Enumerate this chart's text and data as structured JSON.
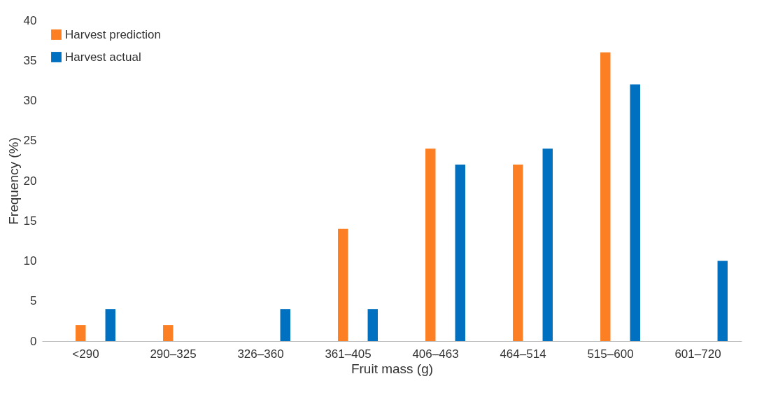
{
  "chart_data": {
    "type": "bar",
    "xlabel": "Fruit mass (g)",
    "ylabel": "Frequency (%)",
    "categories": [
      "<290",
      "290–325",
      "326–360",
      "361–405",
      "406–463",
      "464–514",
      "515–600",
      "601–720"
    ],
    "series": [
      {
        "name": "Harvest prediction",
        "color": "#fd7f23",
        "values": [
          2,
          2,
          0,
          14,
          24,
          22,
          36,
          0
        ]
      },
      {
        "name": "Harvest actual",
        "color": "#0070c0",
        "values": [
          4,
          0,
          4,
          4,
          22,
          24,
          32,
          10
        ]
      }
    ],
    "ylim": [
      0,
      40
    ],
    "yticks": [
      0,
      5,
      10,
      15,
      20,
      25,
      30,
      35,
      40
    ],
    "grid": false,
    "legend": "top left"
  }
}
